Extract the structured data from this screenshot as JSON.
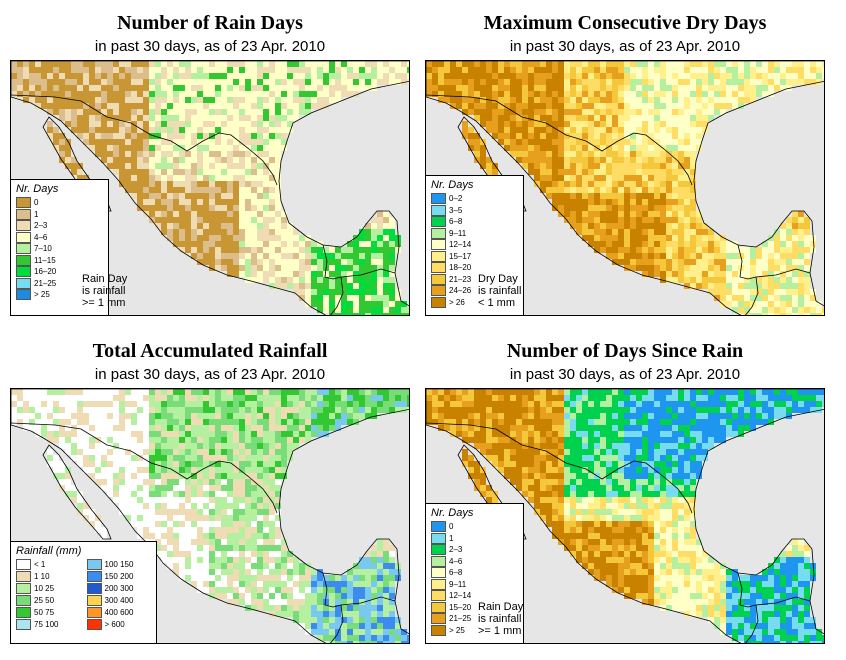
{
  "colors": {
    "land_base": "#ffffc8",
    "ocean": "#e6e6e6",
    "border": "#000000"
  },
  "panels": [
    {
      "id": "rain_days",
      "title": "Number of Rain Days",
      "subtitle": "in past 30 days, as of  23 Apr. 2010",
      "legend": {
        "title": "Nr. Days",
        "items": [
          {
            "label": "0",
            "color": "#c89632"
          },
          {
            "label": "1",
            "color": "#dcbe8c"
          },
          {
            "label": "2–3",
            "color": "#f0dcb4"
          },
          {
            "label": "4–6",
            "color": "#ffffc8"
          },
          {
            "label": "7–10",
            "color": "#b4f0a0"
          },
          {
            "label": "11–15",
            "color": "#32c832"
          },
          {
            "label": "16–20",
            "color": "#00dc3c"
          },
          {
            "label": "21–25",
            "color": "#78dcf0"
          },
          {
            "label": "> 25",
            "color": "#1e8cdc"
          }
        ]
      },
      "note": [
        "Rain Day",
        "is rainfall",
        ">= 1 mm"
      ]
    },
    {
      "id": "dry_days",
      "title": "Maximum Consecutive Dry Days",
      "subtitle": "in past 30 days, as of  23 Apr. 2010",
      "legend": {
        "title": "Nr. Days",
        "items": [
          {
            "label": "0–2",
            "color": "#1e96f0"
          },
          {
            "label": "3–5",
            "color": "#78dcf0"
          },
          {
            "label": "6–8",
            "color": "#00d250"
          },
          {
            "label": "9–11",
            "color": "#b4f0a0"
          },
          {
            "label": "12–14",
            "color": "#ffffc8"
          },
          {
            "label": "15–17",
            "color": "#fff08c"
          },
          {
            "label": "18–20",
            "color": "#ffdc64"
          },
          {
            "label": "21–23",
            "color": "#f5c83c"
          },
          {
            "label": "24–26",
            "color": "#e6a01e"
          },
          {
            "label": "> 26",
            "color": "#c88200"
          }
        ]
      },
      "note": [
        "Dry Day",
        "is rainfall",
        "< 1 mm"
      ]
    },
    {
      "id": "total_rain",
      "title": "Total Accumulated Rainfall",
      "subtitle": "in past 30 days, as of  23 Apr. 2010",
      "legend": {
        "title": "Rainfall (mm)",
        "items": [
          {
            "label": "< 1",
            "color": "#ffffff"
          },
          {
            "label": "1   10",
            "color": "#f0dcb4"
          },
          {
            "label": "10   25",
            "color": "#b4f0a0"
          },
          {
            "label": "25   50",
            "color": "#78dc78"
          },
          {
            "label": "50   75",
            "color": "#32c832"
          },
          {
            "label": "75   100",
            "color": "#aae6f0"
          },
          {
            "label": "100  150",
            "color": "#78c8f0"
          },
          {
            "label": "150  200",
            "color": "#3c8cf0"
          },
          {
            "label": "200  300",
            "color": "#1e5ad2"
          },
          {
            "label": "300  400",
            "color": "#ffd250"
          },
          {
            "label": "400  600",
            "color": "#ff9628"
          },
          {
            "label": "> 600",
            "color": "#ff3200"
          }
        ]
      },
      "note": []
    },
    {
      "id": "since_rain",
      "title": "Number of Days Since Rain",
      "subtitle": "in past 30 days, as of  23 Apr. 2010",
      "legend": {
        "title": "Nr. Days",
        "items": [
          {
            "label": "0",
            "color": "#1e96f0"
          },
          {
            "label": "1",
            "color": "#78dcf0"
          },
          {
            "label": "2–3",
            "color": "#00d250"
          },
          {
            "label": "4–6",
            "color": "#b4f0a0"
          },
          {
            "label": "6–8",
            "color": "#ffffc8"
          },
          {
            "label": "9–11",
            "color": "#fff08c"
          },
          {
            "label": "12–14",
            "color": "#ffdc64"
          },
          {
            "label": "15–20",
            "color": "#f5c83c"
          },
          {
            "label": "21–25",
            "color": "#e6a01e"
          },
          {
            "label": "> 25",
            "color": "#c88200"
          }
        ]
      },
      "note": [
        "Rain Day",
        "is rainfall",
        ">= 1 mm"
      ]
    }
  ]
}
